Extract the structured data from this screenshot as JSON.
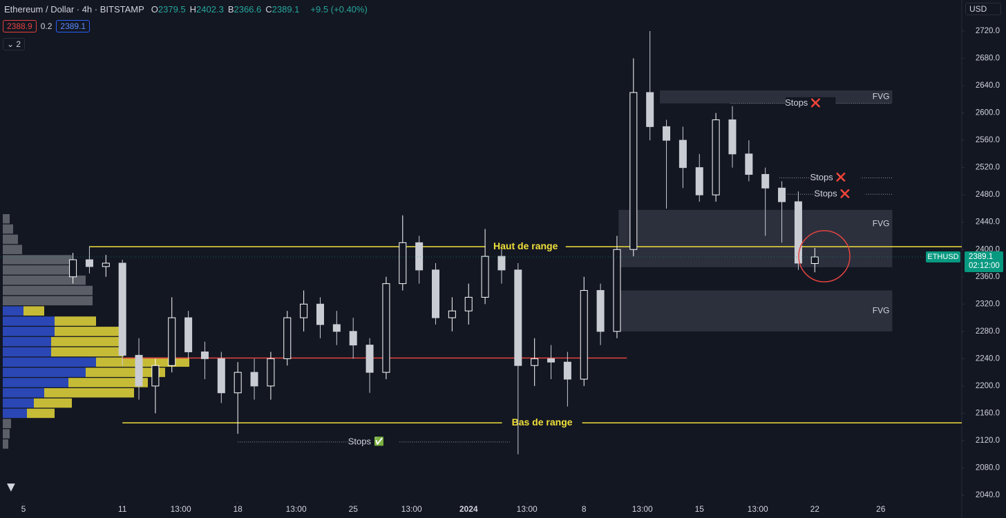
{
  "header": {
    "symbol": "Ethereum / Dollar · 4h · BITSTAMP",
    "ohlc": [
      {
        "label": "O",
        "value": "2379.5"
      },
      {
        "label": "H",
        "value": "2402.3"
      },
      {
        "label": "B",
        "value": "2366.6"
      },
      {
        "label": "C",
        "value": "2389.1"
      }
    ],
    "change": "+9.5 (+0.40%)",
    "bid": "2388.9",
    "spread": "0.2",
    "ask": "2389.1",
    "indicators": "2",
    "currency": "USD"
  },
  "chart_data": {
    "type": "candlestick",
    "x": [
      3,
      4,
      5,
      6,
      7,
      8,
      9,
      10,
      11,
      12,
      13,
      14,
      15,
      16,
      17,
      18,
      19,
      20,
      21,
      22,
      23,
      24,
      25,
      26,
      27,
      28,
      29,
      30,
      31,
      32,
      33,
      34,
      35,
      36,
      37,
      38,
      39,
      40,
      41,
      42,
      43,
      44,
      45,
      46,
      47,
      48
    ],
    "open": [
      2360,
      2385,
      2375,
      2380,
      2245,
      2200,
      2230,
      2300,
      2250,
      2240,
      2190,
      2220,
      2200,
      2240,
      2300,
      2320,
      2290,
      2280,
      2260,
      2220,
      2350,
      2410,
      2370,
      2300,
      2310,
      2330,
      2390,
      2370,
      2230,
      2240,
      2235,
      2210,
      2340,
      2280,
      2400,
      2630,
      2580,
      2560,
      2520,
      2480,
      2590,
      2540,
      2510,
      2490,
      2470,
      2379.5
    ],
    "high": [
      2395,
      2405,
      2392,
      2385,
      2270,
      2240,
      2330,
      2310,
      2265,
      2250,
      2235,
      2240,
      2250,
      2310,
      2340,
      2330,
      2310,
      2300,
      2270,
      2360,
      2450,
      2420,
      2380,
      2330,
      2350,
      2430,
      2400,
      2380,
      2270,
      2260,
      2250,
      2360,
      2350,
      2420,
      2680,
      2720,
      2590,
      2580,
      2540,
      2600,
      2610,
      2560,
      2520,
      2500,
      2485,
      2402.3
    ],
    "low": [
      2350,
      2365,
      2360,
      2230,
      2180,
      2160,
      2220,
      2240,
      2210,
      2175,
      2130,
      2180,
      2180,
      2230,
      2280,
      2270,
      2260,
      2240,
      2190,
      2210,
      2340,
      2350,
      2290,
      2280,
      2290,
      2320,
      2350,
      2100,
      2200,
      2210,
      2170,
      2200,
      2260,
      2270,
      2390,
      2560,
      2460,
      2490,
      2470,
      2470,
      2520,
      2500,
      2420,
      2410,
      2370,
      2366.6
    ],
    "close": [
      2385,
      2375,
      2380,
      2245,
      2200,
      2230,
      2300,
      2250,
      2240,
      2190,
      2220,
      2200,
      2240,
      2300,
      2320,
      2290,
      2280,
      2260,
      2220,
      2350,
      2410,
      2370,
      2300,
      2310,
      2330,
      2390,
      2370,
      2230,
      2240,
      2235,
      2210,
      2340,
      2280,
      2400,
      2630,
      2580,
      2560,
      2520,
      2480,
      2590,
      2540,
      2510,
      2490,
      2470,
      2380,
      2389.1
    ],
    "up_color": "#ffffff",
    "down_color": "#c9ccd3",
    "ylim": [
      2040,
      2720
    ],
    "yticks": [
      {
        "value": 2720,
        "label": "2720.0"
      },
      {
        "value": 2680,
        "label": "2680.0"
      },
      {
        "value": 2640,
        "label": "2640.0"
      },
      {
        "value": 2600,
        "label": "2600.0"
      },
      {
        "value": 2560,
        "label": "2560.0"
      },
      {
        "value": 2520,
        "label": "2520.0"
      },
      {
        "value": 2480,
        "label": "2480.0"
      },
      {
        "value": 2440,
        "label": "2440.0"
      },
      {
        "value": 2400,
        "label": "2400.0"
      },
      {
        "value": 2360,
        "label": "2360.0"
      },
      {
        "value": 2320,
        "label": "2320.0"
      },
      {
        "value": 2280,
        "label": "2280.0"
      },
      {
        "value": 2240,
        "label": "2240.0"
      },
      {
        "value": 2200,
        "label": "2200.0"
      },
      {
        "value": 2160,
        "label": "2160.0"
      },
      {
        "value": 2120,
        "label": "2120.0"
      },
      {
        "value": 2080,
        "label": "2080.0"
      },
      {
        "value": 2040,
        "label": "2040.0"
      }
    ],
    "xticks": [
      {
        "value": 0,
        "label": "5"
      },
      {
        "value": 6,
        "label": "11"
      },
      {
        "value": 9.54,
        "label": "13:00"
      },
      {
        "value": 13,
        "label": "18"
      },
      {
        "value": 16.54,
        "label": "13:00"
      },
      {
        "value": 20,
        "label": "25"
      },
      {
        "value": 23.54,
        "label": "13:00"
      },
      {
        "value": 27,
        "label": "2024"
      },
      {
        "value": 30.54,
        "label": "13:00"
      },
      {
        "value": 34,
        "label": "8"
      },
      {
        "value": 37.54,
        "label": "13:00"
      },
      {
        "value": 41,
        "label": "15"
      },
      {
        "value": 44.54,
        "label": "13:00"
      },
      {
        "value": 48,
        "label": "22"
      },
      {
        "value": 52,
        "label": "26"
      }
    ],
    "last_price": {
      "symbol": "ETHUSD",
      "value": 2389.1,
      "countdown": "02:12:00",
      "color": "#089981"
    },
    "volume_profile": {
      "levels": [
        2445,
        2430,
        2415,
        2400,
        2385,
        2370,
        2355,
        2340,
        2325,
        2310,
        2295,
        2280,
        2265,
        2250,
        2235,
        2220,
        2205,
        2190,
        2175,
        2160,
        2145,
        2130,
        2115
      ],
      "up": [
        10,
        15,
        22,
        28,
        100,
        100,
        120,
        130,
        130,
        30,
        75,
        75,
        70,
        70,
        135,
        120,
        95,
        60,
        45,
        35,
        12,
        10,
        8
      ],
      "down": [
        0,
        0,
        0,
        0,
        0,
        0,
        0,
        0,
        0,
        30,
        60,
        100,
        105,
        105,
        135,
        115,
        115,
        130,
        55,
        40,
        0,
        0,
        0
      ],
      "value_area": [
        2160,
        2310
      ],
      "up_color": "#2a47b5",
      "down_color": "#c6bb36",
      "outside_color": "#5b5e66"
    },
    "levels": [
      {
        "label": "Haut de range",
        "value": 2404,
        "from": 4.0,
        "color": "#f0e03a"
      },
      {
        "label": "Bas de range",
        "value": 2146,
        "from": 6.0,
        "color": "#f0e03a"
      },
      {
        "value": 2241,
        "from": 6.0,
        "to": 36.6,
        "color": "#e5433f"
      }
    ],
    "stops": [
      {
        "label": "Stops",
        "icon": "✅",
        "value": 2118,
        "from": 13.0,
        "to": 29.5
      },
      {
        "label": "Stops",
        "icon": "❌",
        "value": 2614,
        "from": 42.9,
        "to": 52.6
      },
      {
        "label": "Stops",
        "icon": "❌",
        "value": 2505,
        "from": 45.85,
        "to": 52.7
      },
      {
        "label": "Stops",
        "icon": "❌",
        "value": 2481,
        "from": 46.35,
        "to": 52.7
      }
    ],
    "zones": [
      {
        "label": "FVG",
        "low": 2614,
        "high": 2633,
        "from": 38.6,
        "to": 52.7
      },
      {
        "label": "FVG",
        "low": 2374,
        "high": 2458,
        "from": 36.1,
        "to": 52.7
      },
      {
        "label": "FVG",
        "low": 2280,
        "high": 2340,
        "from": 35.9,
        "to": 52.7
      }
    ]
  }
}
